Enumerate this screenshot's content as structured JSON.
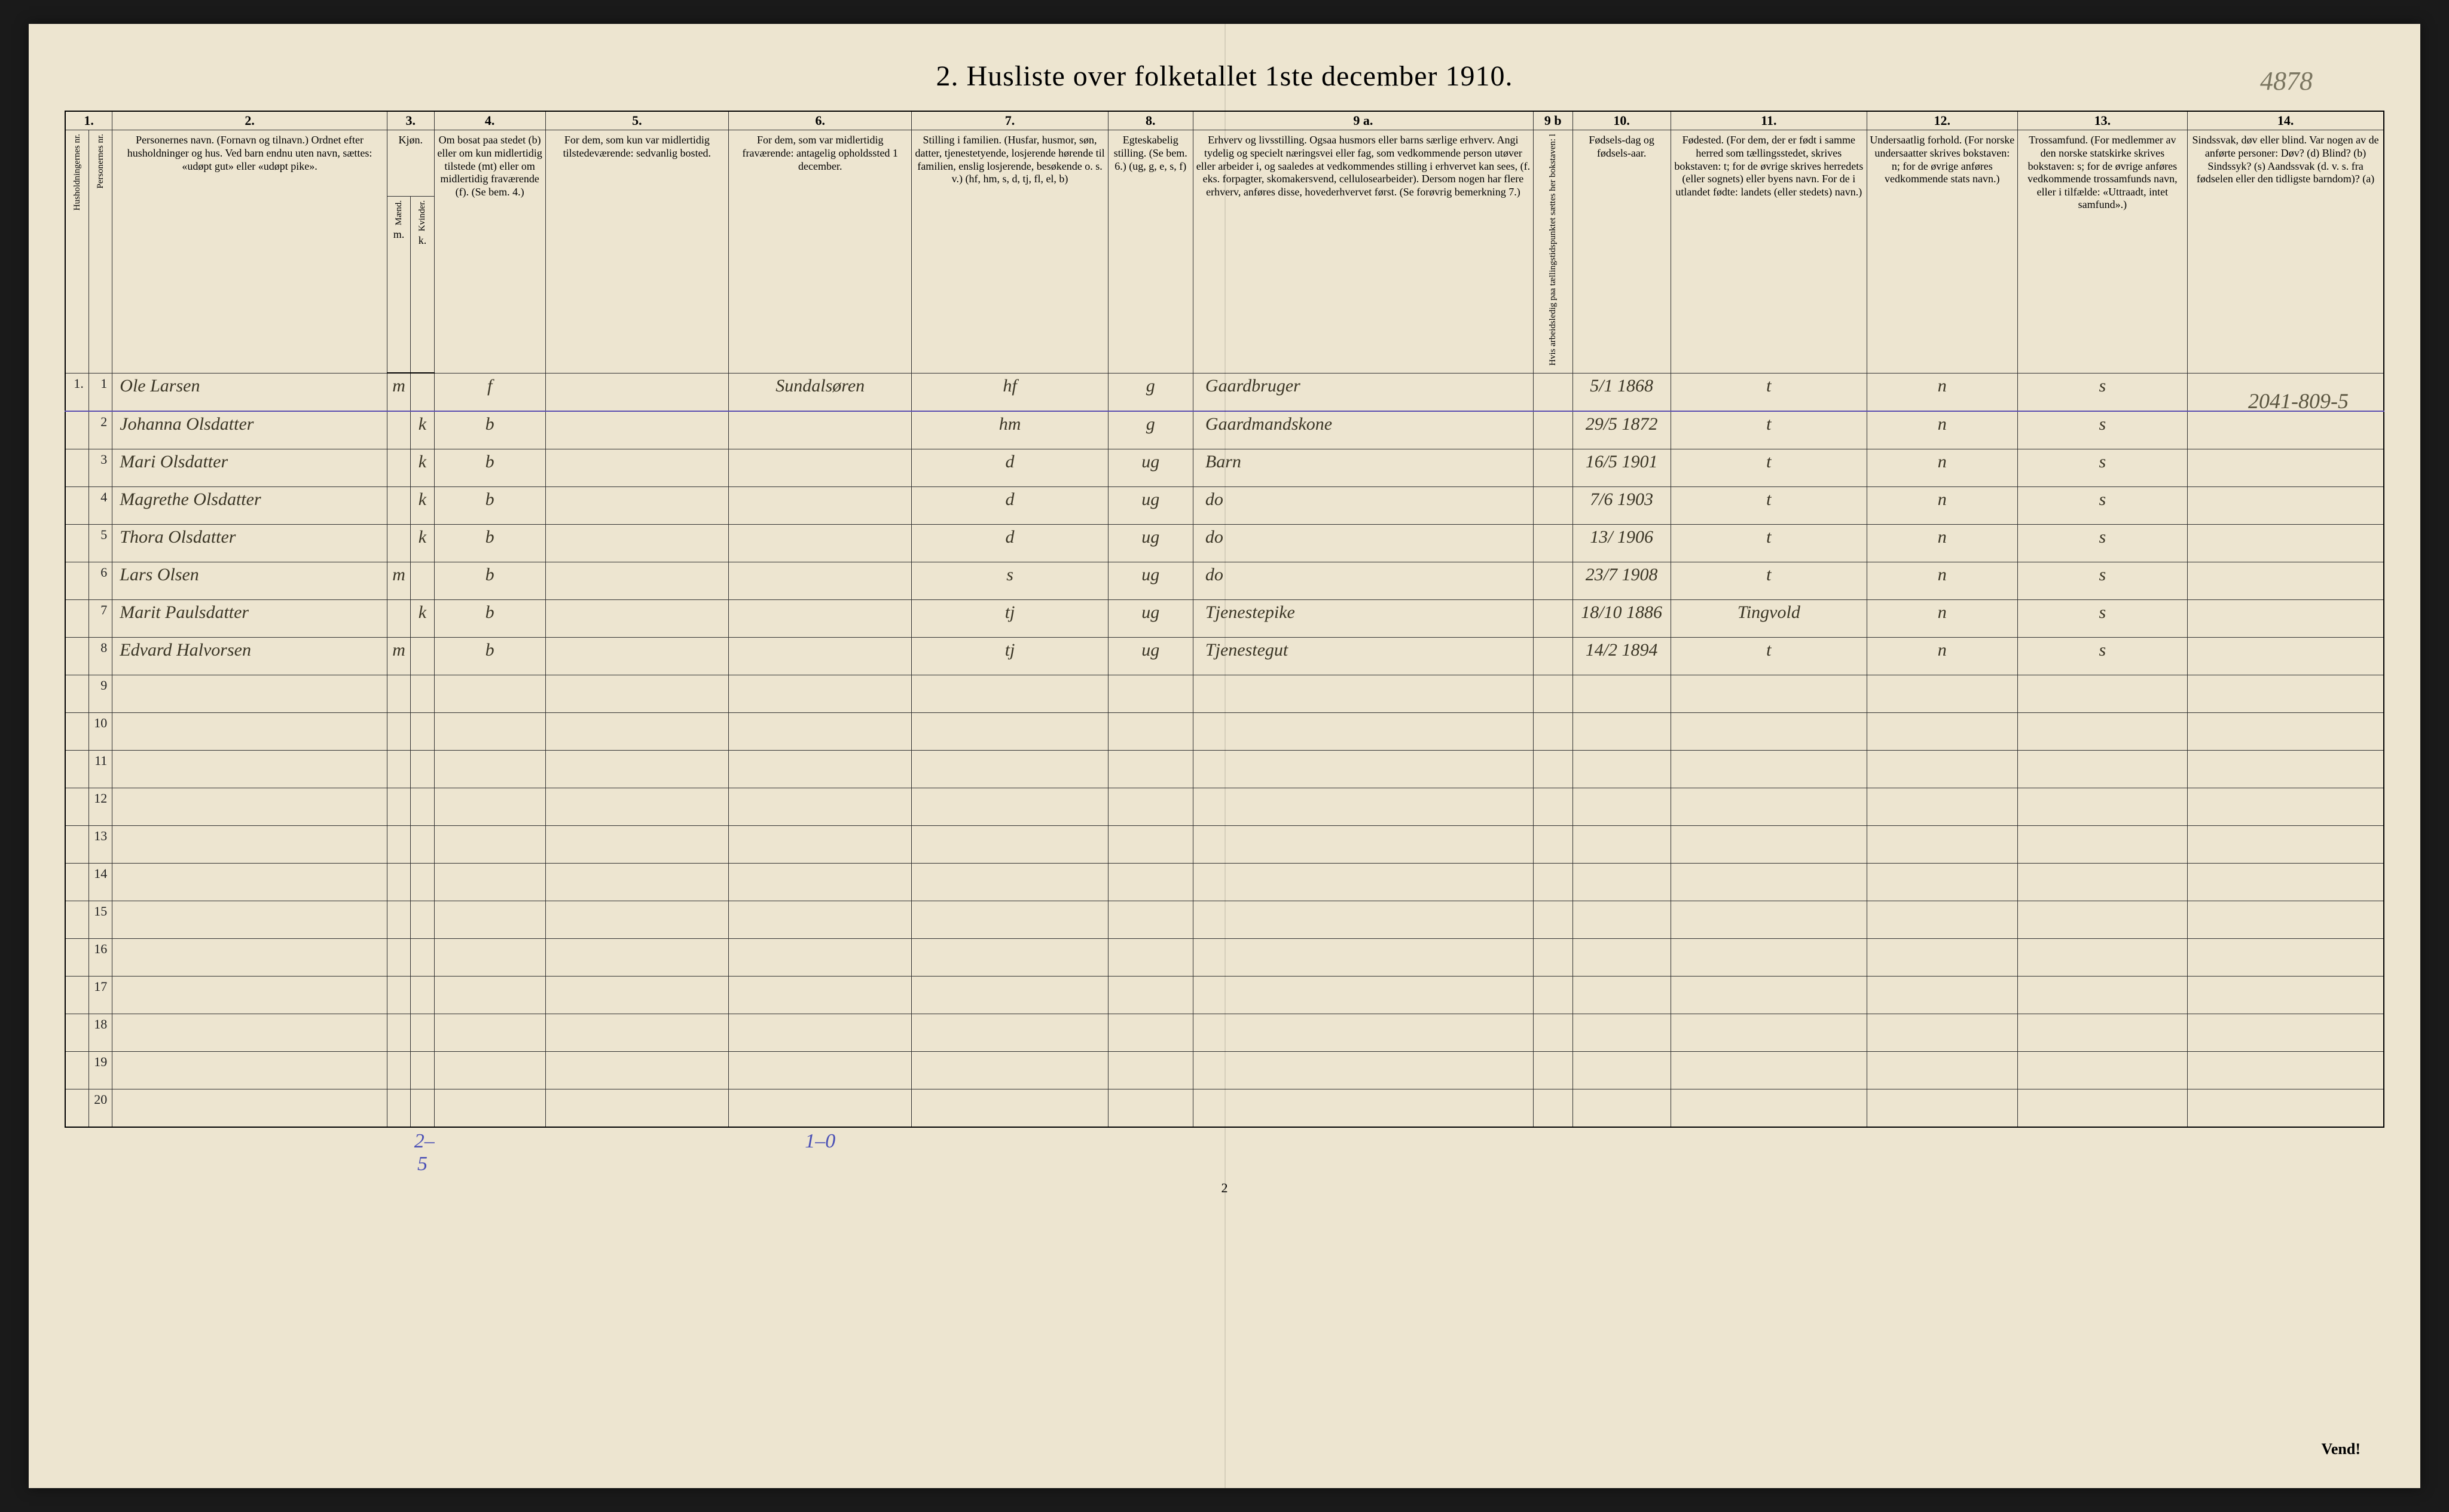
{
  "title": "2.  Husliste over folketallet 1ste december 1910.",
  "top_annotation": "4878",
  "side_annotation": "2041-809-5",
  "page_number": "2",
  "vend_label": "Vend!",
  "column_numbers": [
    "1.",
    "2.",
    "3.",
    "4.",
    "5.",
    "6.",
    "7.",
    "8.",
    "9 a.",
    "9 b",
    "10.",
    "11.",
    "12.",
    "13.",
    "14."
  ],
  "headers": {
    "c1a": "Husholdningernes nr.",
    "c1b": "Personernes nr.",
    "c2": "Personernes navn.\n(Fornavn og tilnavn.)\nOrdnet efter husholdninger og hus.\nVed barn endnu uten navn, sættes: «udøpt gut» eller «udøpt pike».",
    "c3": "Kjøn.",
    "c3a": "Mænd.",
    "c3b": "Kvinder.",
    "c3m": "m.",
    "c3k": "k.",
    "c4": "Om bosat paa stedet (b) eller om kun midlertidig tilstede (mt) eller om midlertidig fraværende (f).\n(Se bem. 4.)",
    "c5": "For dem, som kun var midlertidig tilstedeværende:\nsedvanlig bosted.",
    "c6": "For dem, som var midlertidig fraværende:\nantagelig opholdssted 1 december.",
    "c7": "Stilling i familien.\n(Husfar, husmor, søn, datter, tjenestetyende, losjerende hørende til familien, enslig losjerende, besøkende o. s. v.)\n(hf, hm, s, d, tj, fl, el, b)",
    "c8": "Egteskabelig stilling.\n(Se bem. 6.)\n(ug, g, e, s, f)",
    "c9a": "Erhverv og livsstilling.\nOgsaa husmors eller barns særlige erhverv.\nAngi tydelig og specielt næringsvei eller fag, som vedkommende person utøver eller arbeider i, og saaledes at vedkommendes stilling i erhvervet kan sees, (f. eks. forpagter, skomakersvend, cellulosearbeider). Dersom nogen har flere erhverv, anføres disse, hovederhvervet først.\n(Se forøvrig bemerkning 7.)",
    "c9b": "Hvis arbeidsledig paa tællingstidspunktet sættes her bokstaven: l",
    "c10": "Fødsels-dag og fødsels-aar.",
    "c11": "Fødested.\n(For dem, der er født i samme herred som tællingsstedet, skrives bokstaven: t; for de øvrige skrives herredets (eller sognets) eller byens navn. For de i utlandet fødte: landets (eller stedets) navn.)",
    "c12": "Undersaatlig forhold.\n(For norske undersaatter skrives bokstaven: n; for de øvrige anføres vedkommende stats navn.)",
    "c13": "Trossamfund.\n(For medlemmer av den norske statskirke skrives bokstaven: s; for de øvrige anføres vedkommende trossamfunds navn, eller i tilfælde: «Uttraadt, intet samfund».)",
    "c14": "Sindssvak, døv eller blind.\nVar nogen av de anførte personer:\nDøv? (d)\nBlind? (b)\nSindssyk? (s)\nAandssvak (d. v. s. fra fødselen eller den tidligste barndom)? (a)"
  },
  "rows": [
    {
      "hh": "1.",
      "pn": "1",
      "name": "Ole Larsen",
      "m": "m",
      "k": "",
      "res": "f",
      "c5": "",
      "c6": "Sundalsøren",
      "fam": "hf",
      "mar": "g",
      "occ": "Gaardbruger",
      "c9b": "",
      "dob": "5/1 1868",
      "birthplace": "t",
      "nat": "n",
      "rel": "s",
      "c14": ""
    },
    {
      "hh": "",
      "pn": "2",
      "name": "Johanna Olsdatter",
      "m": "",
      "k": "k",
      "res": "b",
      "c5": "",
      "c6": "",
      "fam": "hm",
      "mar": "g",
      "occ": "Gaardmandskone",
      "c9b": "",
      "dob": "29/5 1872",
      "birthplace": "t",
      "nat": "n",
      "rel": "s",
      "c14": ""
    },
    {
      "hh": "",
      "pn": "3",
      "name": "Mari Olsdatter",
      "m": "",
      "k": "k",
      "res": "b",
      "c5": "",
      "c6": "",
      "fam": "d",
      "mar": "ug",
      "occ": "Barn",
      "c9b": "",
      "dob": "16/5 1901",
      "birthplace": "t",
      "nat": "n",
      "rel": "s",
      "c14": ""
    },
    {
      "hh": "",
      "pn": "4",
      "name": "Magrethe Olsdatter",
      "m": "",
      "k": "k",
      "res": "b",
      "c5": "",
      "c6": "",
      "fam": "d",
      "mar": "ug",
      "occ": "do",
      "c9b": "",
      "dob": "7/6 1903",
      "birthplace": "t",
      "nat": "n",
      "rel": "s",
      "c14": ""
    },
    {
      "hh": "",
      "pn": "5",
      "name": "Thora Olsdatter",
      "m": "",
      "k": "k",
      "res": "b",
      "c5": "",
      "c6": "",
      "fam": "d",
      "mar": "ug",
      "occ": "do",
      "c9b": "",
      "dob": "13/ 1906",
      "birthplace": "t",
      "nat": "n",
      "rel": "s",
      "c14": ""
    },
    {
      "hh": "",
      "pn": "6",
      "name": "Lars Olsen",
      "m": "m",
      "k": "",
      "res": "b",
      "c5": "",
      "c6": "",
      "fam": "s",
      "mar": "ug",
      "occ": "do",
      "c9b": "",
      "dob": "23/7 1908",
      "birthplace": "t",
      "nat": "n",
      "rel": "s",
      "c14": ""
    },
    {
      "hh": "",
      "pn": "7",
      "name": "Marit Paulsdatter",
      "m": "",
      "k": "k",
      "res": "b",
      "c5": "",
      "c6": "",
      "fam": "tj",
      "mar": "ug",
      "occ": "Tjenestepike",
      "c9b": "",
      "dob": "18/10 1886",
      "birthplace": "Tingvold",
      "nat": "n",
      "rel": "s",
      "c14": ""
    },
    {
      "hh": "",
      "pn": "8",
      "name": "Edvard Halvorsen",
      "m": "m",
      "k": "",
      "res": "b",
      "c5": "",
      "c6": "",
      "fam": "tj",
      "mar": "ug",
      "occ": "Tjenestegut",
      "c9b": "",
      "dob": "14/2 1894",
      "birthplace": "t",
      "nat": "n",
      "rel": "s",
      "c14": ""
    }
  ],
  "empty_rows": [
    "9",
    "10",
    "11",
    "12",
    "13",
    "14",
    "15",
    "16",
    "17",
    "18",
    "19",
    "20"
  ],
  "footer": {
    "sex_tally": "2–5",
    "away_tally": "1–0"
  },
  "colwidths": {
    "c1a": 36,
    "c1b": 36,
    "c2": 420,
    "c3a": 36,
    "c3b": 36,
    "c4": 170,
    "c5": 280,
    "c6": 280,
    "c7": 300,
    "c8": 130,
    "c9a": 520,
    "c9b": 60,
    "c10": 150,
    "c11": 300,
    "c12": 230,
    "c13": 260,
    "c14": 300
  },
  "colors": {
    "paper": "#ede5d0",
    "ink": "#222",
    "cursive": "#3a3525",
    "underline": "#5a4db0"
  }
}
